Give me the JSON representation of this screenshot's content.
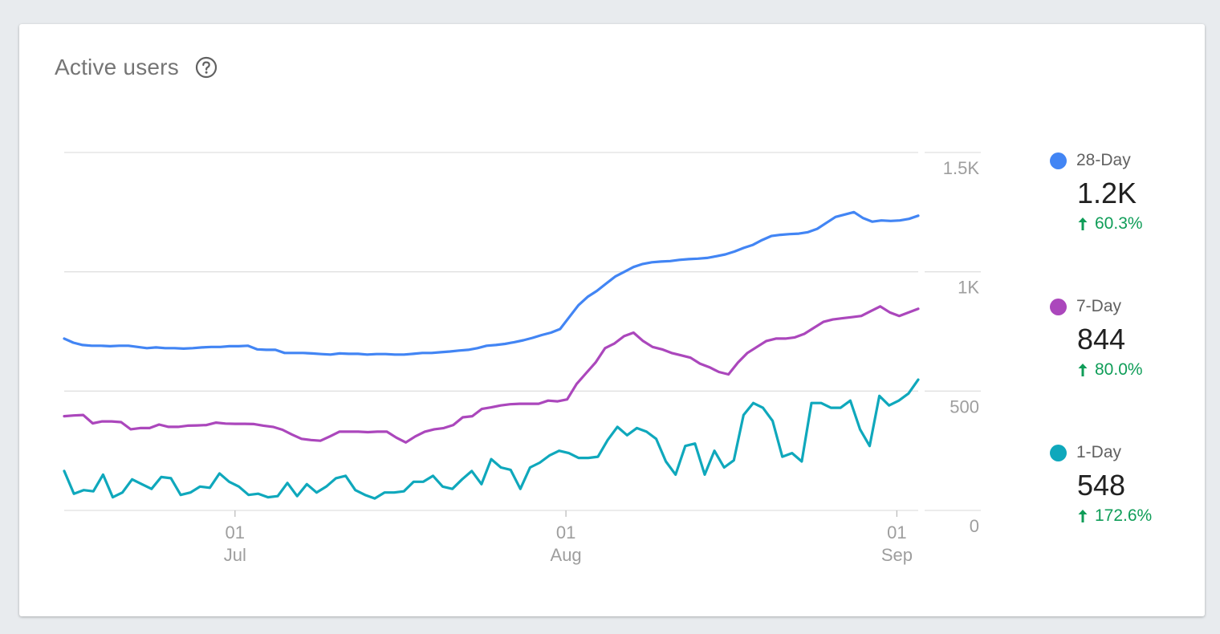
{
  "card": {
    "title": "Active users",
    "help_icon": "help-circle-icon"
  },
  "chart_data": {
    "type": "line",
    "x_start": "2018-06-15",
    "x_end": "2018-09-03",
    "ylim": [
      0,
      1500
    ],
    "yticks": [
      {
        "value": 1500,
        "label": "1.5K"
      },
      {
        "value": 1000,
        "label": "1K"
      },
      {
        "value": 500,
        "label": "500"
      },
      {
        "value": 0,
        "label": "0"
      }
    ],
    "xticks": [
      {
        "date": "2018-07-01",
        "day": "01",
        "month": "Jul"
      },
      {
        "date": "2018-08-01",
        "day": "01",
        "month": "Aug"
      },
      {
        "date": "2018-09-01",
        "day": "01",
        "month": "Sep"
      }
    ],
    "grid": true,
    "series": [
      {
        "name": "28-Day",
        "color": "#4285f4",
        "values": [
          720,
          703,
          693,
          690,
          690,
          688,
          690,
          690,
          685,
          680,
          683,
          680,
          680,
          678,
          680,
          683,
          685,
          685,
          688,
          688,
          690,
          675,
          673,
          673,
          660,
          660,
          660,
          658,
          655,
          653,
          658,
          656,
          656,
          653,
          655,
          655,
          653,
          653,
          656,
          660,
          660,
          663,
          666,
          670,
          673,
          680,
          690,
          693,
          698,
          705,
          713,
          723,
          735,
          745,
          760,
          810,
          860,
          895,
          920,
          950,
          980,
          1000,
          1020,
          1033,
          1040,
          1043,
          1045,
          1050,
          1053,
          1055,
          1058,
          1065,
          1073,
          1085,
          1100,
          1113,
          1133,
          1150,
          1155,
          1158,
          1160,
          1166,
          1180,
          1205,
          1230,
          1240,
          1250,
          1225,
          1210,
          1215,
          1213,
          1215,
          1222,
          1235
        ]
      },
      {
        "name": "7-Day",
        "color": "#ab47bc",
        "values": [
          395,
          398,
          400,
          365,
          373,
          373,
          370,
          340,
          345,
          345,
          360,
          350,
          350,
          355,
          356,
          358,
          368,
          364,
          363,
          363,
          362,
          355,
          350,
          338,
          318,
          300,
          295,
          292,
          310,
          330,
          330,
          330,
          328,
          330,
          330,
          305,
          285,
          310,
          330,
          340,
          345,
          358,
          390,
          395,
          425,
          432,
          440,
          445,
          447,
          447,
          447,
          460,
          457,
          465,
          530,
          575,
          620,
          680,
          700,
          730,
          745,
          710,
          685,
          675,
          660,
          650,
          640,
          615,
          600,
          580,
          570,
          620,
          660,
          685,
          710,
          720,
          720,
          725,
          740,
          765,
          790,
          800,
          805,
          810,
          815,
          835,
          855,
          830,
          815,
          830,
          845
        ]
      },
      {
        "name": "1-Day",
        "color": "#0fa8bc",
        "values": [
          165,
          70,
          85,
          80,
          150,
          55,
          75,
          130,
          110,
          90,
          140,
          135,
          65,
          75,
          100,
          95,
          155,
          120,
          100,
          65,
          70,
          55,
          60,
          115,
          60,
          110,
          75,
          100,
          135,
          145,
          85,
          65,
          50,
          75,
          75,
          80,
          120,
          120,
          145,
          100,
          90,
          130,
          165,
          110,
          215,
          180,
          170,
          90,
          180,
          200,
          230,
          250,
          240,
          220,
          220,
          225,
          295,
          350,
          315,
          345,
          330,
          300,
          205,
          150,
          270,
          280,
          150,
          250,
          180,
          210,
          400,
          450,
          430,
          375,
          225,
          240,
          205,
          450,
          450,
          430,
          430,
          460,
          340,
          270,
          480,
          440,
          460,
          490,
          548
        ]
      }
    ]
  },
  "legend": [
    {
      "name": "28-Day",
      "value": "1.2K",
      "change": "60.3%",
      "color": "#4285f4"
    },
    {
      "name": "7-Day",
      "value": "844",
      "change": "80.0%",
      "color": "#ab47bc"
    },
    {
      "name": "1-Day",
      "value": "548",
      "change": "172.6%",
      "color": "#0fa8bc"
    }
  ]
}
